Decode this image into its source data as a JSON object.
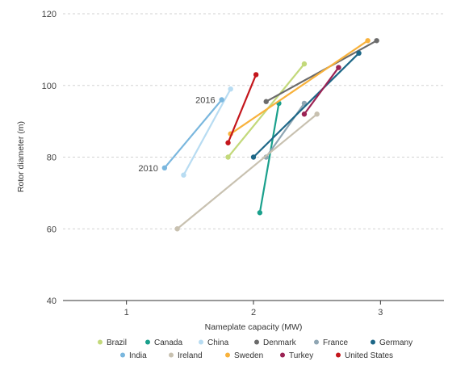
{
  "chart_data": {
    "type": "line",
    "title": "",
    "xlabel": "Nameplate capacity (MW)",
    "ylabel": "Rotor diameter (m)",
    "xlim": [
      0.5,
      3.5
    ],
    "ylim": [
      40,
      120
    ],
    "xticks": [
      1,
      2,
      3
    ],
    "yticks": [
      40,
      60,
      80,
      100,
      120
    ],
    "grid": "horizontal dashed",
    "legend_position": "bottom",
    "annotations": [
      {
        "text": "2016",
        "x": 1.75,
        "y": 96
      },
      {
        "text": "2010",
        "x": 1.3,
        "y": 77
      }
    ],
    "series": [
      {
        "name": "Brazil",
        "color": "#c3d97b",
        "x": [
          1.8,
          2.4
        ],
        "y": [
          80,
          106
        ]
      },
      {
        "name": "Canada",
        "color": "#1aa08c",
        "x": [
          2.05,
          2.2
        ],
        "y": [
          64.5,
          95
        ]
      },
      {
        "name": "China",
        "color": "#b8dcf2",
        "x": [
          1.45,
          1.82
        ],
        "y": [
          75,
          99
        ]
      },
      {
        "name": "Denmark",
        "color": "#6b6b6b",
        "x": [
          2.1,
          2.97
        ],
        "y": [
          95.5,
          112.5
        ]
      },
      {
        "name": "France",
        "color": "#8fa6b3",
        "x": [
          2.1,
          2.4
        ],
        "y": [
          80,
          95
        ]
      },
      {
        "name": "Germany",
        "color": "#1d6787",
        "x": [
          2.0,
          2.83
        ],
        "y": [
          80,
          109
        ]
      },
      {
        "name": "India",
        "color": "#7ab7de",
        "x": [
          1.3,
          1.75
        ],
        "y": [
          77,
          96
        ]
      },
      {
        "name": "Ireland",
        "color": "#c8c1b0",
        "x": [
          1.4,
          2.5
        ],
        "y": [
          60,
          92
        ]
      },
      {
        "name": "Sweden",
        "color": "#f8b23c",
        "x": [
          1.82,
          2.9
        ],
        "y": [
          86.5,
          112.5
        ]
      },
      {
        "name": "Turkey",
        "color": "#9b2354",
        "x": [
          2.4,
          2.67
        ],
        "y": [
          92,
          105
        ]
      },
      {
        "name": "United States",
        "color": "#c4161c",
        "x": [
          1.8,
          2.02
        ],
        "y": [
          84,
          103
        ]
      }
    ]
  }
}
